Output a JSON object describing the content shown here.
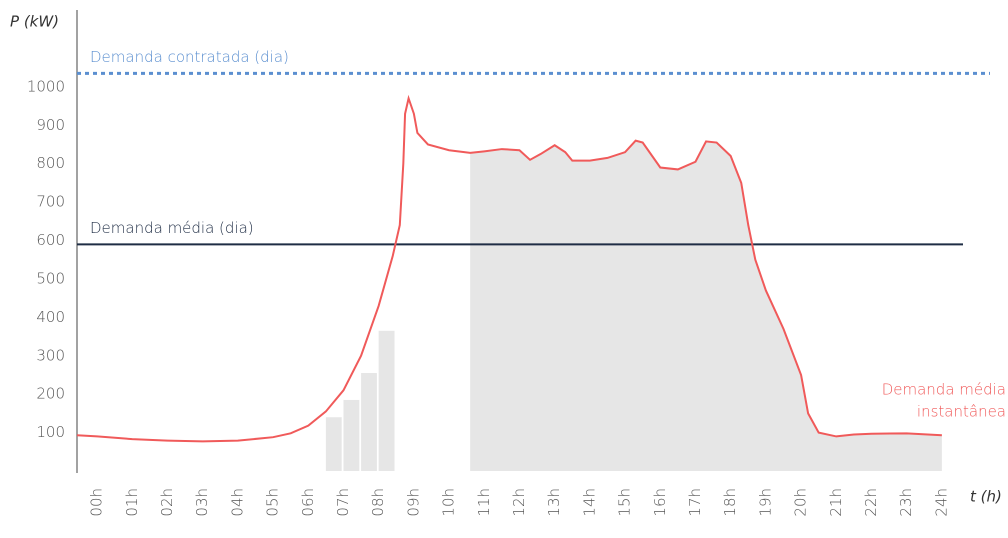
{
  "chart_data": {
    "type": "line",
    "y_label": "P (kW)",
    "x_label": "t (h)",
    "xlim": [
      -0.57,
      24.6
    ],
    "ylim": [
      0,
      1200
    ],
    "yticks": [
      100,
      200,
      300,
      400,
      500,
      600,
      700,
      800,
      900,
      1000
    ],
    "xticks": [
      {
        "value": 0,
        "label": "00h"
      },
      {
        "value": 1,
        "label": "01h"
      },
      {
        "value": 2,
        "label": "02h"
      },
      {
        "value": 3,
        "label": "03h"
      },
      {
        "value": 4,
        "label": "04h"
      },
      {
        "value": 5,
        "label": "05h"
      },
      {
        "value": 6,
        "label": "06h"
      },
      {
        "value": 7,
        "label": "07h"
      },
      {
        "value": 8,
        "label": "08h"
      },
      {
        "value": 9,
        "label": "09h"
      },
      {
        "value": 10,
        "label": "10h"
      },
      {
        "value": 11,
        "label": "11h"
      },
      {
        "value": 12,
        "label": "12h"
      },
      {
        "value": 13,
        "label": "13h"
      },
      {
        "value": 14,
        "label": "14h"
      },
      {
        "value": 15,
        "label": "15h"
      },
      {
        "value": 16,
        "label": "16h"
      },
      {
        "value": 17,
        "label": "17h"
      },
      {
        "value": 18,
        "label": "18h"
      },
      {
        "value": 19,
        "label": "19h"
      },
      {
        "value": 20,
        "label": "20h"
      },
      {
        "value": 21,
        "label": "21h"
      },
      {
        "value": 22,
        "label": "22h"
      },
      {
        "value": 23,
        "label": "23h"
      },
      {
        "value": 24,
        "label": "24h"
      }
    ],
    "reference_lines": [
      {
        "name": "Demanda contratada (dia)",
        "value": 1035,
        "color": "#5b8fd0",
        "dashed": true
      },
      {
        "name": "Demanda média (dia)",
        "value": 590,
        "color": "#1f2d45",
        "dashed": false
      }
    ],
    "bars": {
      "color": "#e6e6e6",
      "width": 0.45,
      "x": [
        6.5,
        7.0,
        7.5,
        8.0
      ],
      "values": [
        140,
        185,
        255,
        365
      ]
    },
    "area": {
      "color": "#e6e6e6",
      "x": [
        10.6,
        11,
        11.5,
        12,
        12.3,
        12.6,
        13,
        13.3,
        13.5,
        14,
        14.5,
        15,
        15.3,
        15.5,
        16,
        16.5,
        17,
        17.3,
        17.6,
        18,
        18.3,
        18.5,
        18.7,
        19,
        19.5,
        20,
        20.2,
        20.5,
        21,
        21.5,
        22,
        23,
        24
      ],
      "values": [
        828,
        832,
        838,
        835,
        810,
        825,
        848,
        830,
        808,
        808,
        815,
        830,
        860,
        855,
        790,
        785,
        805,
        858,
        855,
        820,
        750,
        640,
        550,
        470,
        370,
        250,
        150,
        100,
        90,
        95,
        97,
        98,
        93
      ]
    },
    "series": [
      {
        "name": [
          "Demanda média",
          "instantânea"
        ],
        "color": "#f05a5a",
        "x": [
          -0.57,
          0,
          1,
          2,
          3,
          4,
          5,
          5.5,
          6,
          6.5,
          7,
          7.5,
          8,
          8.4,
          8.6,
          8.7,
          8.75,
          8.85,
          9.0,
          9.1,
          9.4,
          10,
          10.6,
          11,
          11.5,
          12,
          12.3,
          12.6,
          13,
          13.3,
          13.5,
          14,
          14.5,
          15,
          15.3,
          15.5,
          16,
          16.5,
          17,
          17.3,
          17.6,
          18,
          18.3,
          18.5,
          18.7,
          19,
          19.5,
          20,
          20.2,
          20.5,
          21,
          21.5,
          22,
          23,
          24
        ],
        "values": [
          93,
          90,
          83,
          79,
          77,
          79,
          88,
          98,
          118,
          155,
          210,
          300,
          430,
          560,
          640,
          800,
          930,
          970,
          930,
          880,
          850,
          835,
          828,
          832,
          838,
          835,
          810,
          825,
          848,
          830,
          808,
          808,
          815,
          830,
          860,
          855,
          790,
          785,
          805,
          858,
          855,
          820,
          750,
          640,
          550,
          470,
          370,
          250,
          150,
          100,
          90,
          95,
          97,
          98,
          93
        ]
      }
    ]
  }
}
